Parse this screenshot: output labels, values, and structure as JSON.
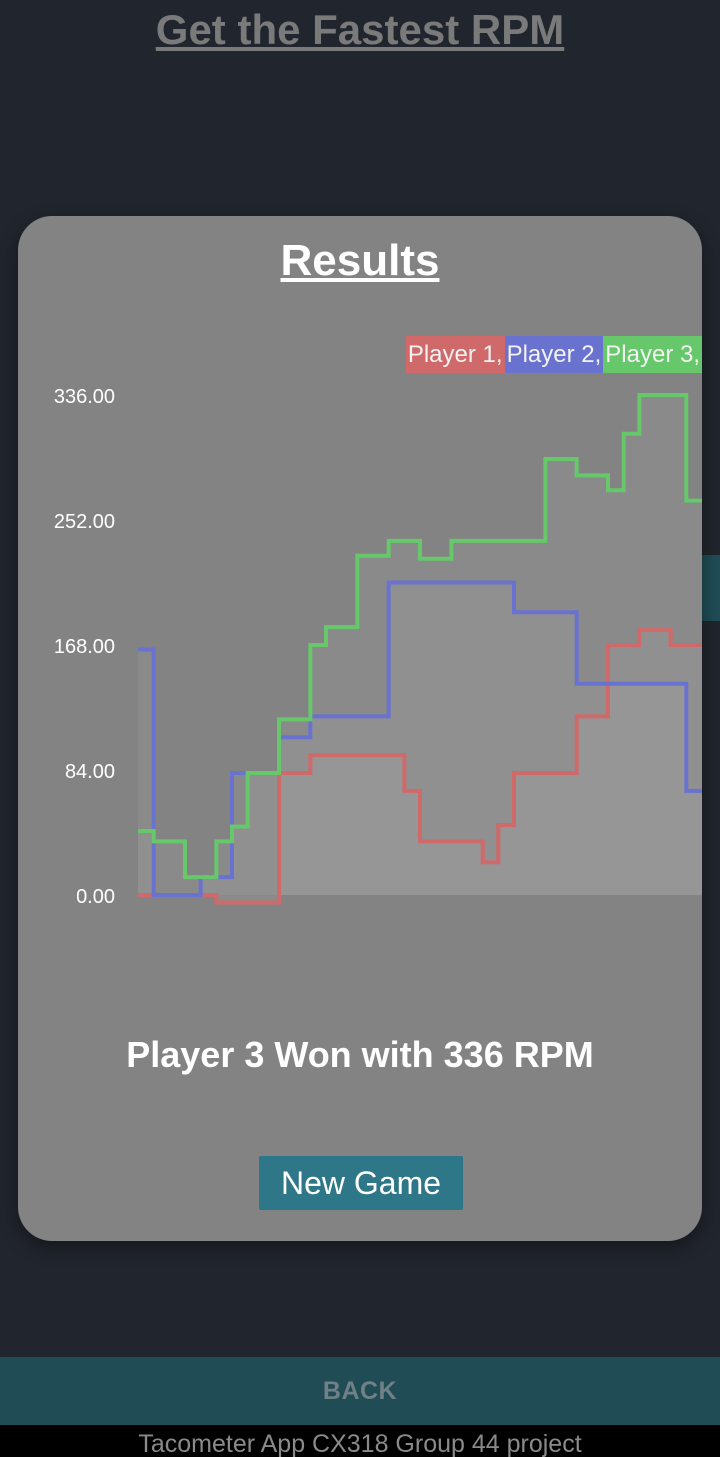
{
  "page_title": "Get the Fastest RPM",
  "modal": {
    "title": "Results",
    "winner_text": "Player 3 Won with 336 RPM",
    "new_game_label": "New Game"
  },
  "back_label": "BACK",
  "footer_text": "Tacometer App CX318 Group 44 project",
  "colors": {
    "player1": "#d06a6a",
    "player2": "#6a72d0",
    "player3": "#66c86a",
    "modal_bg": "#838383",
    "button_bg": "#2e7788",
    "bar_bg": "#1f4c55"
  },
  "chart_data": {
    "type": "line",
    "step": true,
    "filled": true,
    "ylim": [
      0,
      336
    ],
    "yticks": [
      "336.00",
      "252.00",
      "168.00",
      "84.00",
      "0.00"
    ],
    "legend_position": "top-right",
    "legend": [
      "Player 1,",
      "Player 2,",
      "Player 3,"
    ],
    "x": [
      0,
      1,
      2,
      3,
      4,
      5,
      6,
      7,
      8,
      9,
      10,
      11,
      12,
      13,
      14,
      15,
      16,
      17,
      18,
      19,
      20,
      21,
      22,
      23,
      24,
      25,
      26,
      27,
      28,
      29,
      30,
      31,
      32,
      33,
      34,
      35
    ],
    "series": [
      {
        "name": "Player 1",
        "color": "#d06a6a",
        "values": [
          0,
          0,
          0,
          0,
          0,
          -5,
          -5,
          -5,
          -5,
          82,
          82,
          94,
          94,
          94,
          94,
          94,
          94,
          70,
          36,
          36,
          36,
          36,
          22,
          47,
          82,
          82,
          82,
          82,
          120,
          120,
          168,
          168,
          178,
          178,
          168,
          168
        ]
      },
      {
        "name": "Player 2",
        "color": "#6a72d0",
        "values": [
          165,
          0,
          0,
          0,
          12,
          12,
          82,
          82,
          82,
          106,
          106,
          120,
          120,
          120,
          120,
          120,
          210,
          210,
          210,
          210,
          210,
          210,
          210,
          210,
          190,
          190,
          190,
          190,
          142,
          142,
          142,
          142,
          142,
          142,
          142,
          70
        ]
      },
      {
        "name": "Player 3",
        "color": "#66c86a",
        "values": [
          43,
          36,
          36,
          12,
          12,
          36,
          46,
          82,
          82,
          118,
          118,
          168,
          180,
          180,
          228,
          228,
          238,
          238,
          226,
          226,
          238,
          238,
          238,
          238,
          238,
          238,
          293,
          293,
          282,
          282,
          272,
          310,
          336,
          336,
          336,
          265
        ]
      }
    ]
  }
}
